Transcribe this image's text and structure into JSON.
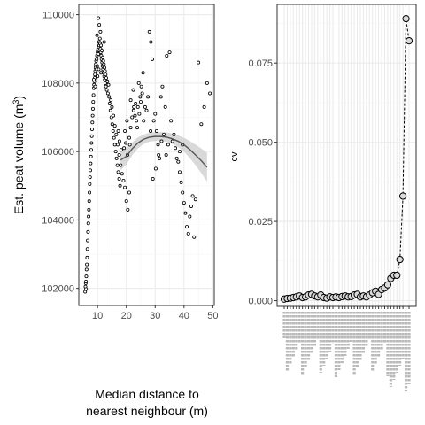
{
  "chart_data": [
    {
      "type": "scatter",
      "xlabel_line1": "Median distance to",
      "xlabel_line2": "nearest neighbour (m)",
      "ylabel_main": "Est. peat volume (m",
      "ylabel_sup": "3",
      "ylabel_close": ")",
      "xlim": [
        3.5,
        50.5
      ],
      "ylim": [
        101500,
        110300
      ],
      "x_ticks": [
        10,
        20,
        30,
        40,
        50
      ],
      "y_ticks": [
        102000,
        104000,
        106000,
        108000,
        110000
      ],
      "grid": true,
      "smooth_line": {
        "x": [
          18,
          20,
          22,
          24,
          26,
          28,
          30,
          32,
          34,
          36,
          38,
          40,
          42,
          44,
          46,
          48
        ],
        "y": [
          105750,
          105860,
          106080,
          106250,
          106360,
          106420,
          106440,
          106440,
          106420,
          106370,
          106300,
          106200,
          106060,
          105900,
          105730,
          105540
        ],
        "band": [
          300,
          240,
          190,
          160,
          140,
          130,
          130,
          130,
          140,
          150,
          170,
          200,
          250,
          300,
          360,
          420
        ]
      },
      "series": [
        {
          "points": [
            [
              5.7,
              101900
            ],
            [
              5.8,
              102050
            ],
            [
              5.9,
              102150
            ],
            [
              6.0,
              102200
            ],
            [
              6.0,
              101980
            ],
            [
              6.1,
              102350
            ],
            [
              6.2,
              102550
            ],
            [
              6.3,
              102700
            ],
            [
              6.4,
              102900
            ],
            [
              6.5,
              103150
            ],
            [
              6.6,
              103400
            ],
            [
              6.7,
              103650
            ],
            [
              6.8,
              103900
            ],
            [
              6.9,
              104100
            ],
            [
              7.0,
              104300
            ],
            [
              7.1,
              104550
            ],
            [
              7.2,
              104800
            ],
            [
              7.3,
              105050
            ],
            [
              7.4,
              105250
            ],
            [
              7.5,
              105450
            ],
            [
              7.6,
              105650
            ],
            [
              7.7,
              105850
            ],
            [
              7.8,
              106050
            ],
            [
              7.9,
              106250
            ],
            [
              8.0,
              106450
            ],
            [
              8.1,
              106650
            ],
            [
              8.2,
              106850
            ],
            [
              8.3,
              107050
            ],
            [
              8.4,
              107250
            ],
            [
              8.5,
              107450
            ],
            [
              8.6,
              107650
            ],
            [
              8.7,
              107850
            ],
            [
              8.8,
              107950
            ],
            [
              8.9,
              108050
            ],
            [
              9.0,
              108150
            ],
            [
              9.1,
              108250
            ],
            [
              9.2,
              108350
            ],
            [
              9.3,
              108450
            ],
            [
              9.4,
              108550
            ],
            [
              9.5,
              108650
            ],
            [
              9.6,
              108400
            ],
            [
              9.7,
              108700
            ],
            [
              9.8,
              108800
            ],
            [
              9.9,
              108500
            ],
            [
              10.0,
              108900
            ],
            [
              10.1,
              108950
            ],
            [
              10.2,
              109000
            ],
            [
              10.3,
              108850
            ],
            [
              10.4,
              109050
            ],
            [
              10.5,
              109200
            ],
            [
              10.6,
              109100
            ],
            [
              10.7,
              108950
            ],
            [
              10.8,
              109300
            ],
            [
              10.9,
              109150
            ],
            [
              11.0,
              109000
            ],
            [
              11.1,
              108900
            ],
            [
              11.2,
              109100
            ],
            [
              11.3,
              108800
            ],
            [
              11.4,
              108700
            ],
            [
              11.5,
              108950
            ],
            [
              11.6,
              108600
            ],
            [
              11.7,
              108500
            ],
            [
              11.8,
              108750
            ],
            [
              11.9,
              108400
            ],
            [
              12.0,
              108650
            ],
            [
              12.1,
              108300
            ],
            [
              12.2,
              108550
            ],
            [
              12.3,
              108200
            ],
            [
              12.4,
              108450
            ],
            [
              12.5,
              108100
            ],
            [
              12.6,
              108350
            ],
            [
              12.7,
              108000
            ],
            [
              12.8,
              108250
            ],
            [
              12.9,
              107900
            ],
            [
              13.0,
              108150
            ],
            [
              13.2,
              107800
            ],
            [
              13.4,
              108050
            ],
            [
              13.6,
              107700
            ],
            [
              13.8,
              107950
            ],
            [
              14.0,
              107600
            ],
            [
              10.3,
              109900
            ],
            [
              10.6,
              109700
            ],
            [
              11.0,
              109500
            ],
            [
              9.8,
              109400
            ],
            [
              12.3,
              109200
            ],
            [
              10.0,
              108200
            ],
            [
              10.4,
              108400
            ],
            [
              11.2,
              108300
            ],
            [
              8.7,
              108100
            ],
            [
              9.2,
              107900
            ],
            [
              14.2,
              107400
            ],
            [
              14.5,
              107200
            ],
            [
              14.8,
              107000
            ],
            [
              15.1,
              106800
            ],
            [
              15.4,
              106600
            ],
            [
              15.7,
              106400
            ],
            [
              16.0,
              106200
            ],
            [
              16.3,
              106000
            ],
            [
              16.6,
              105800
            ],
            [
              16.9,
              105600
            ],
            [
              17.2,
              105400
            ],
            [
              17.5,
              105200
            ],
            [
              17.8,
              105000
            ],
            [
              14.6,
              107500
            ],
            [
              15.0,
              107300
            ],
            [
              15.5,
              107050
            ],
            [
              16.0,
              106750
            ],
            [
              16.5,
              106500
            ],
            [
              17.0,
              106200
            ],
            [
              17.5,
              105900
            ],
            [
              18.0,
              105600
            ],
            [
              17.2,
              106600
            ],
            [
              17.6,
              106300
            ],
            [
              18.2,
              106050
            ],
            [
              18.5,
              105350
            ],
            [
              19.0,
              105150
            ],
            [
              19.5,
              104950
            ],
            [
              20.0,
              104550
            ],
            [
              20.5,
              104300
            ],
            [
              21.0,
              104800
            ],
            [
              19.2,
              106100
            ],
            [
              19.8,
              106250
            ],
            [
              20.4,
              105900
            ],
            [
              21.0,
              106400
            ],
            [
              21.5,
              106700
            ],
            [
              22.0,
              107000
            ],
            [
              22.5,
              107200
            ],
            [
              23.0,
              107050
            ],
            [
              23.5,
              106900
            ],
            [
              24.0,
              107300
            ],
            [
              24.5,
              107100
            ],
            [
              25.0,
              107450
            ],
            [
              25.5,
              107700
            ],
            [
              21.5,
              107500
            ],
            [
              22.4,
              107800
            ],
            [
              23.2,
              107400
            ],
            [
              24.3,
              108000
            ],
            [
              25.2,
              107900
            ],
            [
              25.8,
              108300
            ],
            [
              26.5,
              107300
            ],
            [
              27.5,
              107600
            ],
            [
              28.0,
              109500
            ],
            [
              28.5,
              109200
            ],
            [
              29.0,
              108700
            ],
            [
              29.5,
              106900
            ],
            [
              30.0,
              107100
            ],
            [
              30.5,
              106600
            ],
            [
              31.0,
              106200
            ],
            [
              31.5,
              105800
            ],
            [
              32.0,
              107600
            ],
            [
              32.5,
              107900
            ],
            [
              33.5,
              107300
            ],
            [
              34.0,
              108800
            ],
            [
              35.0,
              108900
            ],
            [
              36.0,
              106300
            ],
            [
              36.5,
              106500
            ],
            [
              37.0,
              106100
            ],
            [
              37.5,
              105800
            ],
            [
              38.0,
              105700
            ],
            [
              38.5,
              105400
            ],
            [
              39.0,
              105100
            ],
            [
              39.5,
              104800
            ],
            [
              40.0,
              104500
            ],
            [
              40.5,
              104200
            ],
            [
              41.0,
              103800
            ],
            [
              41.5,
              103600
            ],
            [
              42.0,
              104100
            ],
            [
              42.5,
              104400
            ],
            [
              43.0,
              104700
            ],
            [
              38.5,
              106000
            ],
            [
              39.5,
              106200
            ],
            [
              45.0,
              108600
            ],
            [
              46.0,
              106800
            ],
            [
              47.0,
              107300
            ],
            [
              48.0,
              108000
            ],
            [
              49.0,
              107700
            ],
            [
              43.5,
              103500
            ],
            [
              44.0,
              104600
            ],
            [
              19.5,
              106600
            ],
            [
              20.2,
              106900
            ],
            [
              21.2,
              106200
            ],
            [
              22.6,
              107300
            ],
            [
              23.8,
              106700
            ],
            [
              24.8,
              107600
            ],
            [
              26.0,
              106900
            ],
            [
              27.0,
              107200
            ],
            [
              28.4,
              106600
            ],
            [
              29.2,
              105200
            ],
            [
              30.2,
              105500
            ],
            [
              31.2,
              105900
            ],
            [
              32.2,
              106300
            ],
            [
              33.0,
              106500
            ],
            [
              34.5,
              106200
            ],
            [
              35.5,
              106900
            ],
            [
              33.8,
              105900
            ]
          ]
        }
      ]
    },
    {
      "type": "line",
      "ylabel": "cv",
      "ylim": [
        -0.0018,
        0.0935
      ],
      "y_ticks": [
        0.0,
        0.025,
        0.05,
        0.075
      ],
      "y_tick_labels": [
        "0.000",
        "0.025",
        "0.050",
        "0.075"
      ],
      "grid": true,
      "values": [
        0.0005,
        0.0007,
        0.0008,
        0.001,
        0.0012,
        0.0015,
        0.001,
        0.0012,
        0.0018,
        0.002,
        0.0015,
        0.0012,
        0.0018,
        0.001,
        0.0008,
        0.0012,
        0.001,
        0.0012,
        0.001,
        0.0013,
        0.0015,
        0.0012,
        0.0013,
        0.0018,
        0.002,
        0.0012,
        0.0015,
        0.0012,
        0.0018,
        0.0025,
        0.003,
        0.002,
        0.0035,
        0.004,
        0.005,
        0.007,
        0.008,
        0.008,
        0.013,
        0.033,
        0.089,
        0.082
      ]
    }
  ]
}
